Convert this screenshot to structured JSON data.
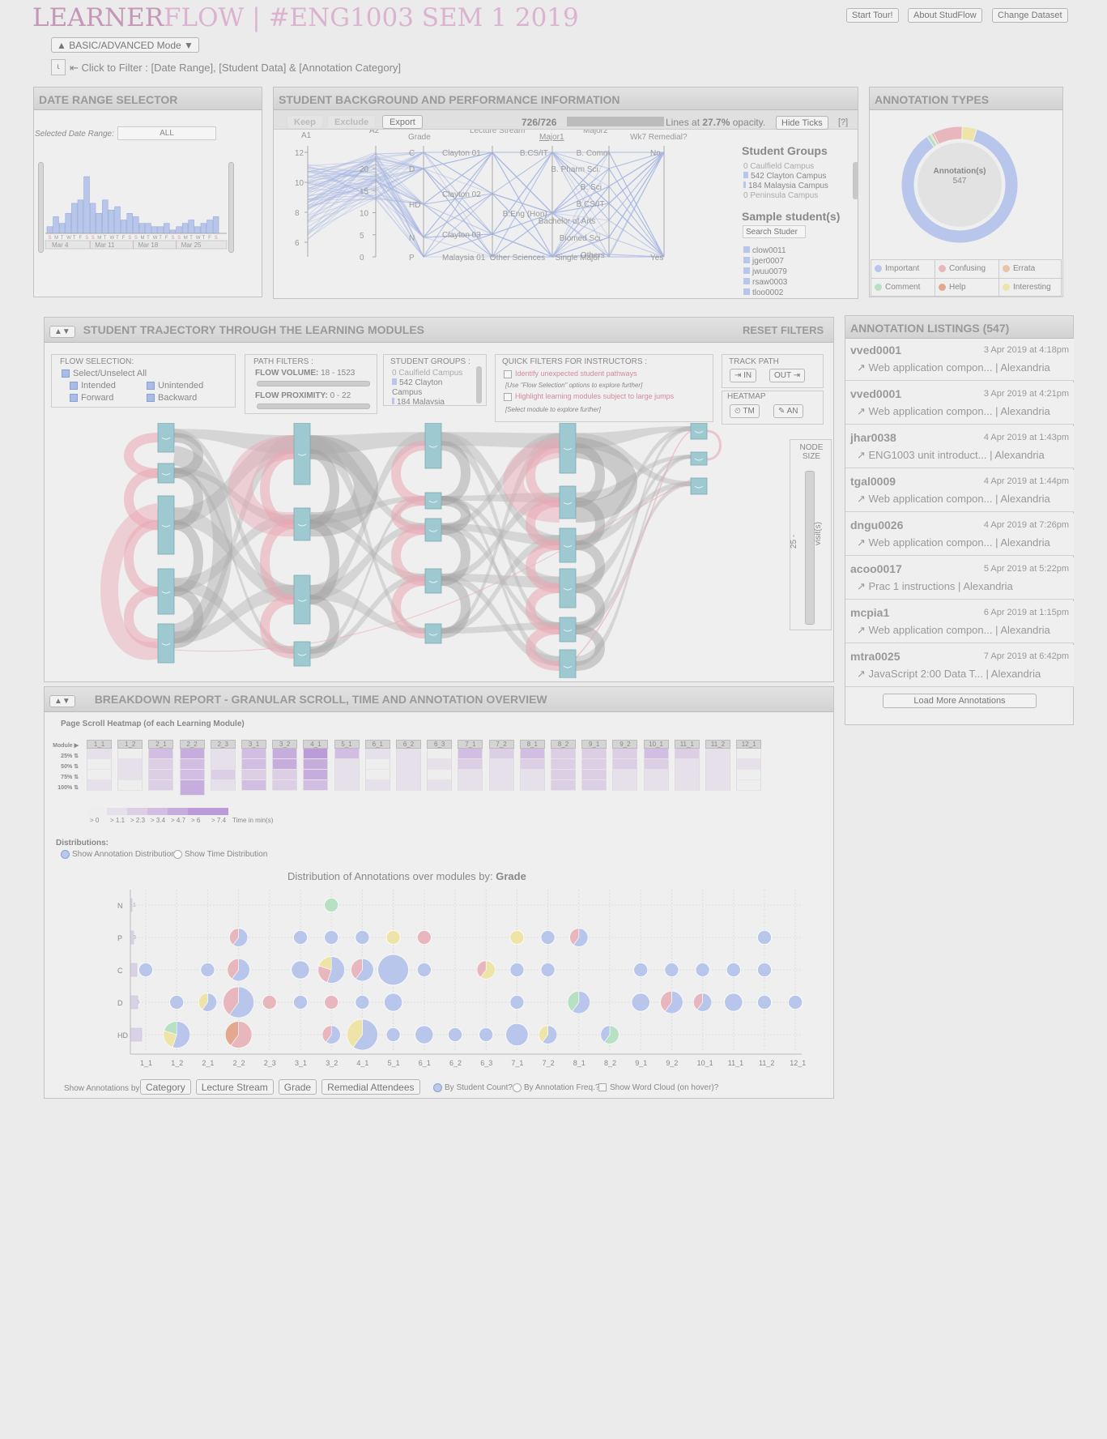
{
  "header": {
    "brand_a": "LEARNER",
    "brand_b": "FLOW | #ENG1003 SEM 1 2019",
    "buttons": [
      "Start Tour!",
      "About StudFlow",
      "Change Dataset"
    ],
    "mode_btn": "▲ BASIC/ADVANCED Mode ▼",
    "filter_hint": "⇤ Click to Filter : [Date Range], [Student Data] & [Annotation Category]"
  },
  "date_range": {
    "title": "DATE RANGE SELECTOR",
    "selected_label": "Selected Date Range:",
    "selected_value": "ALL",
    "day_labels": [
      "S",
      "M",
      "T",
      "W",
      "T",
      "F",
      "S",
      "S",
      "M",
      "T",
      "W",
      "T",
      "F",
      "S",
      "S",
      "M",
      "T",
      "W",
      "T",
      "F",
      "S",
      "S",
      "M",
      "T",
      "W",
      "T",
      "F",
      "S"
    ],
    "week_labels": [
      "Mar 4",
      "Mar 11",
      "Mar 18",
      "Mar 25"
    ],
    "histogram": [
      2,
      5,
      3,
      6,
      9,
      10,
      17,
      9,
      6,
      10,
      7,
      8,
      4,
      6,
      5,
      3,
      3,
      2,
      2,
      3,
      1,
      2,
      3,
      4,
      2,
      3,
      4,
      5
    ]
  },
  "student_bg": {
    "title": "STUDENT BACKGROUND AND PERFORMANCE INFORMATION",
    "keep": "Keep",
    "exclude": "Exclude",
    "export": "Export",
    "count": "726/726",
    "lines_a": "Lines at ",
    "opacity": "27.7%",
    "lines_b": " opacity.",
    "hide_ticks": "Hide Ticks",
    "help": "[?]",
    "axes": [
      "A1",
      "A2",
      "Grade",
      "Lecture Stream",
      "Major1",
      "Major2",
      "Wk7 Remedial?"
    ],
    "a1_ticks": [
      "12",
      "10",
      "8",
      "6"
    ],
    "a2_ticks": [
      "20",
      "15",
      "10",
      "5",
      "0"
    ],
    "grade_ticks": [
      "C",
      "D",
      "HD",
      "N",
      "P"
    ],
    "lecture_ticks": [
      "Clayton 01",
      "Clayton 02",
      "Clayton 03",
      "Malaysia 01"
    ],
    "major1_ticks": [
      "B.CS/IT",
      "B.Eng (Hon)",
      "Other Sciences"
    ],
    "major2_ticks": [
      "B. Comm",
      "B. Pharm Sci.",
      "B. Sci",
      "B.CS/IT",
      "Bachelor of Arts",
      "Biomed Sci.",
      "Others",
      "Single Major"
    ],
    "remedial_ticks": [
      "No",
      "Yes"
    ],
    "groups_title": "Student Groups",
    "groups": [
      "0 Caulfield Campus",
      "542 Clayton Campus",
      "184 Malaysia Campus",
      "0 Peninsula Campus"
    ],
    "sample_title": "Sample student(s)",
    "search_placeholder": "Search Studer",
    "students": [
      "clow0011",
      "jger0007",
      "jwuu0079",
      "rsaw0003",
      "tloo0002"
    ]
  },
  "annotation_types": {
    "title": "ANNOTATION TYPES",
    "center_label": "Annotation(s)",
    "center_value": "547",
    "legend": [
      {
        "name": "Important",
        "color": "#b7c6ea"
      },
      {
        "name": "Confusing",
        "color": "#e8b7bd"
      },
      {
        "name": "Errata",
        "color": "#e8c3a8"
      },
      {
        "name": "Comment",
        "color": "#b8e0c2"
      },
      {
        "name": "Help",
        "color": "#e3a890"
      },
      {
        "name": "Interesting",
        "color": "#efe4a8"
      }
    ],
    "chart_data": {
      "type": "pie",
      "categories": [
        "Important",
        "Confusing",
        "Errata",
        "Comment",
        "Help",
        "Interesting"
      ],
      "values": [
        469,
        45,
        2,
        6,
        3,
        22
      ]
    }
  },
  "trajectory": {
    "toggle": "▲▼",
    "title": "STUDENT TRAJECTORY THROUGH THE LEARNING MODULES",
    "reset": "RESET FILTERS",
    "flow_sel_title": "FLOW SELECTION:",
    "select_all": "Select/Unselect All",
    "intended": "Intended",
    "unintended": "Unintended",
    "forward": "Forward",
    "backward": "Backward",
    "path_title": "PATH FILTERS :",
    "flow_volume_label": "FLOW VOLUME:",
    "flow_volume_value": "18 - 1523",
    "flow_prox_label": "FLOW PROXIMITY:",
    "flow_prox_value": "0 - 22",
    "groups_title": "STUDENT GROUPS :",
    "groups": [
      "0 Caulfield Campus",
      "542 Clayton Campus",
      "184 Malaysia"
    ],
    "quick_title": "QUICK FILTERS FOR INSTRUCTORS :",
    "quick1": "Identify unexpected student pathways",
    "quick1_note": "[Use \"Flow Selection\" options to explore further]",
    "quick2": "Highlight learning modules subject to large jumps",
    "quick2_note": "[Select module to explore further]",
    "track_title": "TRACK PATH",
    "track_in": "⇥ IN",
    "track_out": "OUT ⇥",
    "heatmap_title": "HEATMAP",
    "heat_tm": "⏲ TM",
    "heat_an": "✎ AN",
    "node_size": "NODE SIZE",
    "node_value": "25 -",
    "node_unit": "visit(s)"
  },
  "listings": {
    "title": "ANNOTATION LISTINGS (547)",
    "items": [
      {
        "user": "vved0001",
        "date": "3 Apr 2019 at 4:18pm",
        "text": "↗ Web application compon... | Alexandria"
      },
      {
        "user": "vved0001",
        "date": "3 Apr 2019 at 4:21pm",
        "text": "↗ Web application compon... | Alexandria"
      },
      {
        "user": "jhar0038",
        "date": "4 Apr 2019 at 1:43pm",
        "text": "↗ ENG1003 unit introduct... | Alexandria"
      },
      {
        "user": "tgal0009",
        "date": "4 Apr 2019 at 1:44pm",
        "text": "↗ Web application compon... | Alexandria"
      },
      {
        "user": "dngu0026",
        "date": "4 Apr 2019 at 7:26pm",
        "text": "↗ Web application compon... | Alexandria"
      },
      {
        "user": "acoo0017",
        "date": "5 Apr 2019 at 5:22pm",
        "text": "↗ Prac 1 instructions | Alexandria"
      },
      {
        "user": "mcpia1",
        "date": "6 Apr 2019 at 1:15pm",
        "text": "↗ Web application compon... | Alexandria"
      },
      {
        "user": "mtra0025",
        "date": "7 Apr 2019 at 6:42pm",
        "text": "↗ JavaScript 2:00 Data T... | Alexandria"
      }
    ],
    "load_more": "Load More Annotations"
  },
  "breakdown": {
    "toggle": "▲▼",
    "title": "BREAKDOWN REPORT - GRANULAR SCROLL, TIME AND ANNOTATION OVERVIEW",
    "heatmap_title": "Page Scroll Heatmap (of each Learning Module)",
    "row_labels": [
      "Module ▶",
      "25% ⇅",
      "50% ⇅",
      "75% ⇅",
      "100% ⇅"
    ],
    "modules": [
      "1_1",
      "1_2",
      "2_1",
      "2_2",
      "2_3",
      "3_1",
      "3_2",
      "4_1",
      "5_1",
      "6_1",
      "6_2",
      "6_3",
      "7_1",
      "7_2",
      "8_1",
      "8_2",
      "9_1",
      "9_2",
      "10_1",
      "11_1",
      "11_2",
      "12_1"
    ],
    "heat_levels": [
      [
        1,
        0,
        0,
        1
      ],
      [
        0,
        1,
        1,
        0
      ],
      [
        3,
        2,
        2,
        2
      ],
      [
        4,
        3,
        3,
        4
      ],
      [
        1,
        1,
        2,
        1
      ],
      [
        3,
        3,
        2,
        3
      ],
      [
        4,
        4,
        2,
        2
      ],
      [
        5,
        4,
        4,
        3
      ],
      [
        3,
        1,
        1,
        1
      ],
      [
        1,
        0,
        0,
        1
      ],
      [
        1,
        1,
        1,
        1
      ],
      [
        0,
        1,
        0,
        1
      ],
      [
        3,
        2,
        1,
        1
      ],
      [
        2,
        1,
        1,
        1
      ],
      [
        3,
        2,
        1,
        1
      ],
      [
        2,
        2,
        2,
        2
      ],
      [
        2,
        2,
        2,
        2
      ],
      [
        2,
        2,
        1,
        1
      ],
      [
        3,
        2,
        1,
        1
      ],
      [
        2,
        1,
        1,
        1
      ],
      [
        1,
        1,
        1,
        1
      ],
      [
        0,
        1,
        0,
        0
      ]
    ],
    "heat_legend": [
      "> 0",
      "> 1.1",
      "> 2.3",
      "> 3.4",
      "> 4.7",
      "> 6",
      "> 7.4"
    ],
    "heat_legend_unit": "Time in min(s)",
    "dist_label": "Distributions:",
    "show_ann_dist": "Show Annotation Distribution",
    "show_time_dist": "Show Time Distribution",
    "chart_title_a": "Distribution of Annotations over modules by: ",
    "chart_title_b": "Grade",
    "bottom_label": "Show Annotations by:",
    "bottom_buttons": [
      "Category",
      "Lecture Stream",
      "Grade",
      "Remedial Attendees"
    ],
    "by_student": "By Student Count?",
    "by_freq": "By Annotation Freq.?",
    "word_cloud": "Show Word Cloud (on hover)?"
  },
  "chart_data": {
    "type": "scatter",
    "title": "Distribution of Annotations over modules by: Grade",
    "categories": [
      "1_1",
      "1_2",
      "2_1",
      "2_2",
      "2_3",
      "3_1",
      "3_2",
      "4_1",
      "5_1",
      "6_1",
      "6_2",
      "6_3",
      "7_1",
      "7_2",
      "8_1",
      "8_2",
      "9_1",
      "9_2",
      "10_1",
      "11_1",
      "11_2",
      "12_1"
    ],
    "y_categories": [
      "N",
      "P",
      "C",
      "D",
      "HD"
    ],
    "y_counts": [
      "1",
      "3",
      "9",
      "10",
      "15"
    ],
    "points": [
      {
        "x": "3_2",
        "y": "N",
        "size": 1,
        "colors": [
          "#b8e0c2"
        ]
      },
      {
        "x": "2_2",
        "y": "P",
        "size": 2,
        "colors": [
          "#b7c6ea",
          "#e8b7bd"
        ]
      },
      {
        "x": "3_1",
        "y": "P",
        "size": 1,
        "colors": [
          "#b7c6ea"
        ]
      },
      {
        "x": "3_2",
        "y": "P",
        "size": 1,
        "colors": [
          "#b7c6ea"
        ]
      },
      {
        "x": "4_1",
        "y": "P",
        "size": 1,
        "colors": [
          "#b7c6ea"
        ]
      },
      {
        "x": "5_1",
        "y": "P",
        "size": 1,
        "colors": [
          "#efe4a8"
        ]
      },
      {
        "x": "6_1",
        "y": "P",
        "size": 1,
        "colors": [
          "#e8b7bd"
        ]
      },
      {
        "x": "7_1",
        "y": "P",
        "size": 1,
        "colors": [
          "#efe4a8"
        ]
      },
      {
        "x": "7_2",
        "y": "P",
        "size": 1,
        "colors": [
          "#b7c6ea"
        ]
      },
      {
        "x": "8_1",
        "y": "P",
        "size": 2,
        "colors": [
          "#b7c6ea",
          "#e8b7bd"
        ]
      },
      {
        "x": "11_2",
        "y": "P",
        "size": 1,
        "colors": [
          "#b7c6ea"
        ]
      },
      {
        "x": "1_1",
        "y": "C",
        "size": 1,
        "colors": [
          "#b7c6ea"
        ]
      },
      {
        "x": "2_1",
        "y": "C",
        "size": 1,
        "colors": [
          "#b7c6ea"
        ]
      },
      {
        "x": "2_2",
        "y": "C",
        "size": 3,
        "colors": [
          "#b7c6ea",
          "#e8b7bd"
        ]
      },
      {
        "x": "3_1",
        "y": "C",
        "size": 2,
        "colors": [
          "#b7c6ea"
        ]
      },
      {
        "x": "3_2",
        "y": "C",
        "size": 4,
        "colors": [
          "#b7c6ea",
          "#e8b7bd",
          "#efe4a8"
        ]
      },
      {
        "x": "4_1",
        "y": "C",
        "size": 3,
        "colors": [
          "#b7c6ea",
          "#e8b7bd"
        ]
      },
      {
        "x": "5_1",
        "y": "C",
        "size": 5,
        "colors": [
          "#b7c6ea"
        ]
      },
      {
        "x": "6_1",
        "y": "C",
        "size": 1,
        "colors": [
          "#b7c6ea"
        ]
      },
      {
        "x": "6_3",
        "y": "C",
        "size": 2,
        "colors": [
          "#efe4a8",
          "#e8b7bd"
        ]
      },
      {
        "x": "7_1",
        "y": "C",
        "size": 1,
        "colors": [
          "#b7c6ea"
        ]
      },
      {
        "x": "7_2",
        "y": "C",
        "size": 1,
        "colors": [
          "#b7c6ea"
        ]
      },
      {
        "x": "9_1",
        "y": "C",
        "size": 1,
        "colors": [
          "#b7c6ea"
        ]
      },
      {
        "x": "9_2",
        "y": "C",
        "size": 1,
        "colors": [
          "#b7c6ea"
        ]
      },
      {
        "x": "10_1",
        "y": "C",
        "size": 1,
        "colors": [
          "#b7c6ea"
        ]
      },
      {
        "x": "11_1",
        "y": "C",
        "size": 1,
        "colors": [
          "#b7c6ea"
        ]
      },
      {
        "x": "11_2",
        "y": "C",
        "size": 1,
        "colors": [
          "#b7c6ea"
        ]
      },
      {
        "x": "1_2",
        "y": "D",
        "size": 1,
        "colors": [
          "#b7c6ea"
        ]
      },
      {
        "x": "2_1",
        "y": "D",
        "size": 2,
        "colors": [
          "#b7c6ea",
          "#efe4a8"
        ]
      },
      {
        "x": "2_2",
        "y": "D",
        "size": 5,
        "colors": [
          "#b7c6ea",
          "#e8b7bd"
        ]
      },
      {
        "x": "2_3",
        "y": "D",
        "size": 1,
        "colors": [
          "#e8b7bd"
        ]
      },
      {
        "x": "3_1",
        "y": "D",
        "size": 1,
        "colors": [
          "#b7c6ea"
        ]
      },
      {
        "x": "3_2",
        "y": "D",
        "size": 1,
        "colors": [
          "#e8b7bd"
        ]
      },
      {
        "x": "4_1",
        "y": "D",
        "size": 1,
        "colors": [
          "#b7c6ea"
        ]
      },
      {
        "x": "5_1",
        "y": "D",
        "size": 2,
        "colors": [
          "#b7c6ea"
        ]
      },
      {
        "x": "7_1",
        "y": "D",
        "size": 1,
        "colors": [
          "#b7c6ea"
        ]
      },
      {
        "x": "8_1",
        "y": "D",
        "size": 3,
        "colors": [
          "#b7c6ea",
          "#b8e0c2"
        ]
      },
      {
        "x": "9_1",
        "y": "D",
        "size": 2,
        "colors": [
          "#b7c6ea"
        ]
      },
      {
        "x": "9_2",
        "y": "D",
        "size": 3,
        "colors": [
          "#b7c6ea",
          "#e8b7bd"
        ]
      },
      {
        "x": "10_1",
        "y": "D",
        "size": 2,
        "colors": [
          "#b7c6ea",
          "#e8b7bd"
        ]
      },
      {
        "x": "11_1",
        "y": "D",
        "size": 2,
        "colors": [
          "#b7c6ea"
        ]
      },
      {
        "x": "11_2",
        "y": "D",
        "size": 1,
        "colors": [
          "#b7c6ea"
        ]
      },
      {
        "x": "12_1",
        "y": "D",
        "size": 1,
        "colors": [
          "#b7c6ea"
        ]
      },
      {
        "x": "1_2",
        "y": "HD",
        "size": 4,
        "colors": [
          "#b7c6ea",
          "#efe4a8",
          "#b8e0c2"
        ]
      },
      {
        "x": "2_2",
        "y": "HD",
        "size": 4,
        "colors": [
          "#e8b7bd",
          "#e3a890"
        ]
      },
      {
        "x": "3_2",
        "y": "HD",
        "size": 2,
        "colors": [
          "#b7c6ea",
          "#e8b7bd"
        ]
      },
      {
        "x": "4_1",
        "y": "HD",
        "size": 5,
        "colors": [
          "#b7c6ea",
          "#efe4a8"
        ]
      },
      {
        "x": "5_1",
        "y": "HD",
        "size": 1,
        "colors": [
          "#b7c6ea"
        ]
      },
      {
        "x": "6_1",
        "y": "HD",
        "size": 2,
        "colors": [
          "#b7c6ea"
        ]
      },
      {
        "x": "6_2",
        "y": "HD",
        "size": 1,
        "colors": [
          "#b7c6ea"
        ]
      },
      {
        "x": "6_3",
        "y": "HD",
        "size": 1,
        "colors": [
          "#b7c6ea"
        ]
      },
      {
        "x": "7_1",
        "y": "HD",
        "size": 3,
        "colors": [
          "#b7c6ea"
        ]
      },
      {
        "x": "7_2",
        "y": "HD",
        "size": 2,
        "colors": [
          "#b7c6ea",
          "#efe4a8"
        ]
      },
      {
        "x": "8_2",
        "y": "HD",
        "size": 2,
        "colors": [
          "#b8e0c2",
          "#b7c6ea"
        ]
      }
    ]
  }
}
